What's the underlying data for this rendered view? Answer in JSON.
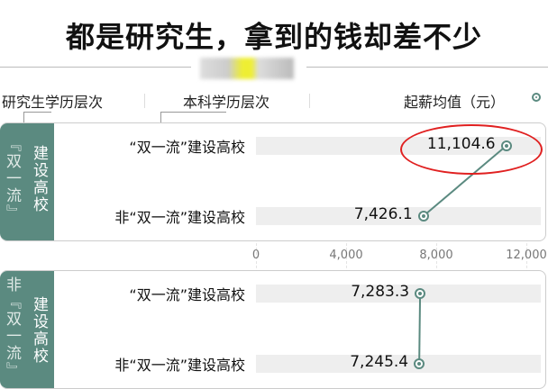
{
  "title": "都是研究生，拿到的钱却差不少",
  "headers": {
    "grad_level": "研究生学历层次",
    "undergrad_level": "本科学历层次",
    "metric": "起薪均值（元）"
  },
  "colors": {
    "accent": "#5b8a80",
    "highlight_ellipse": "#e02020",
    "band": "#eeeeee"
  },
  "chart_data": {
    "type": "dot",
    "xlim": [
      0,
      12000
    ],
    "xticks": [
      "0",
      "4,000",
      "8,000",
      "12,000"
    ],
    "xtick_values": [
      0,
      4000,
      8000,
      12000
    ],
    "legend": "起薪均值（元）",
    "legend_placement": "top-right",
    "groups": [
      {
        "label_col1": "『双一流』",
        "label_col2": "建设高校",
        "rows": [
          {
            "label": "“双一流”建设高校",
            "value": 11104.6,
            "value_label": "11,104.6",
            "highlighted": true
          },
          {
            "label": "非“双一流”建设高校",
            "value": 7426.1,
            "value_label": "7,426.1"
          }
        ]
      },
      {
        "label_col1": "非『双一流』",
        "label_col2": "建设高校",
        "rows": [
          {
            "label": "“双一流”建设高校",
            "value": 7283.3,
            "value_label": "7,283.3"
          },
          {
            "label": "非“双一流”建设高校",
            "value": 7245.4,
            "value_label": "7,245.4"
          }
        ]
      }
    ]
  }
}
